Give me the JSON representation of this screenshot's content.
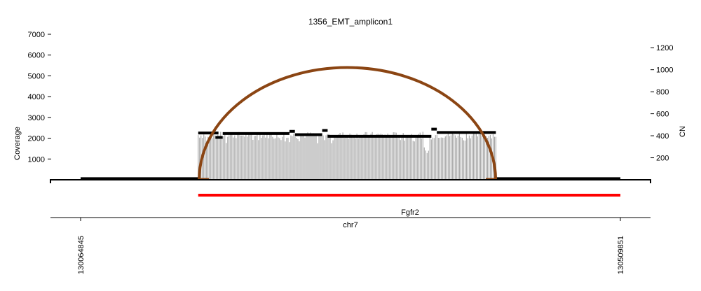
{
  "chart_data": {
    "type": "bar",
    "title": "1356_EMT_amplicon1",
    "ylabel": "Coverage",
    "y2label": "CN",
    "xlabel": "chr7",
    "gene_label": "Fgfr2",
    "xlim": [
      130064845,
      130509851
    ],
    "x_ticks": [
      130064845,
      130509851
    ],
    "x_tick_labels": [
      "130064845",
      "130509851"
    ],
    "ylim": [
      0,
      7000
    ],
    "y_ticks": [
      1000,
      2000,
      3000,
      4000,
      5000,
      6000,
      7000
    ],
    "y_tick_labels": [
      "1000",
      "2000",
      "3000",
      "4000",
      "5000",
      "6000",
      "7000"
    ],
    "y2lim": [
      0,
      1322
    ],
    "y2_ticks": [
      200,
      400,
      600,
      800,
      1000,
      1200
    ],
    "y2_tick_labels": [
      "200",
      "400",
      "600",
      "800",
      "1000",
      "1200"
    ],
    "coverage": {
      "x_start": 130161800,
      "x_end": 130407200,
      "baseline": 2150,
      "dip": {
        "x_start": 130348000,
        "x_end": 130352000,
        "value": 1100
      },
      "color": "#999999"
    },
    "copy_number_segments": [
      {
        "x_start": 130064845,
        "x_end": 130161800,
        "cn": 10
      },
      {
        "x_start": 130161800,
        "x_end": 130178500,
        "cn": 425
      },
      {
        "x_start": 130176000,
        "x_end": 130182000,
        "cn": 385
      },
      {
        "x_start": 130182000,
        "x_end": 130237000,
        "cn": 420
      },
      {
        "x_start": 130237000,
        "x_end": 130241500,
        "cn": 440
      },
      {
        "x_start": 130241500,
        "x_end": 130264000,
        "cn": 410
      },
      {
        "x_start": 130264000,
        "x_end": 130268500,
        "cn": 448
      },
      {
        "x_start": 130268500,
        "x_end": 130354000,
        "cn": 395
      },
      {
        "x_start": 130354000,
        "x_end": 130358500,
        "cn": 460
      },
      {
        "x_start": 130358500,
        "x_end": 130407200,
        "cn": 430
      },
      {
        "x_start": 130407200,
        "x_end": 130509851,
        "cn": 10
      }
    ],
    "breakpoint_arc": {
      "x1": 130162600,
      "x2": 130407000,
      "peak_cov": 5400,
      "color": "#8B4513"
    },
    "gene": {
      "name": "Fgfr2",
      "x_start": 130161800,
      "x_end": 130509851,
      "color": "#FF0000"
    }
  }
}
